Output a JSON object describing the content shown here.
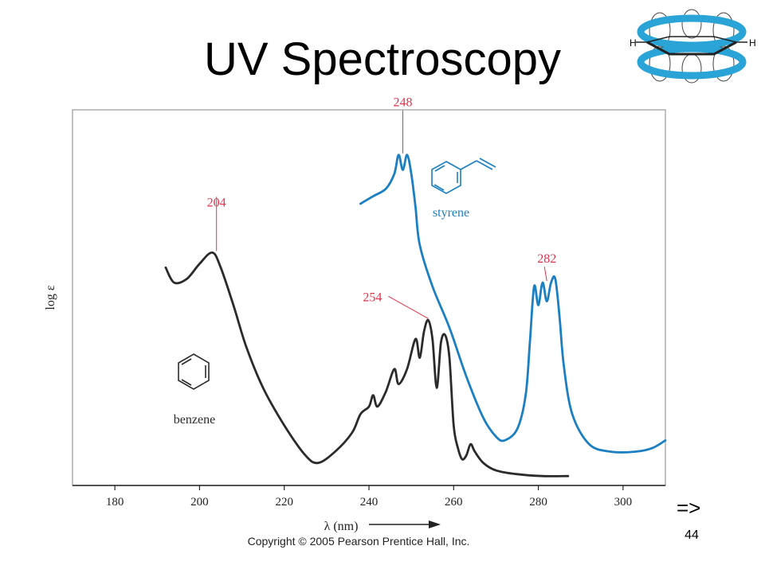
{
  "slide": {
    "title": "UV Spectroscopy",
    "page_number": "44",
    "next_arrow": "=>",
    "copyright": "Copyright © 2005 Pearson Prentice Hall, Inc."
  },
  "logo": {
    "h_left": "H",
    "h_right": "H",
    "icon": "benzene-pi-orbital-icon",
    "ring_color": "#2aa3d6"
  },
  "chart_data": {
    "type": "line",
    "xlabel": "λ (nm)",
    "ylabel": "log ε",
    "xlim": [
      170,
      310
    ],
    "ylim": [
      0,
      100
    ],
    "xticks": [
      180,
      200,
      220,
      240,
      260,
      280,
      300
    ],
    "grid": false,
    "series": [
      {
        "name": "benzene",
        "color": "#2b2b2b",
        "x": [
          192,
          194,
          197,
          200,
          203,
          205,
          208,
          211,
          215,
          220,
          225,
          228,
          232,
          236,
          238,
          240,
          241,
          242,
          244,
          246,
          247,
          249,
          251,
          252,
          253,
          254,
          255,
          256,
          257,
          258,
          259,
          260,
          261,
          262,
          263,
          264,
          265,
          267,
          270,
          275,
          281,
          287
        ],
        "y": [
          58,
          54,
          55,
          59,
          62,
          58,
          48,
          37,
          26,
          16,
          8,
          6,
          9,
          14,
          19,
          21,
          24,
          21,
          25,
          31,
          27,
          31,
          39,
          34,
          41,
          44,
          39,
          26,
          38,
          40,
          34,
          16,
          10,
          7,
          8,
          11,
          9,
          6,
          4,
          3,
          2.5,
          2.5
        ]
      },
      {
        "name": "styrene",
        "color": "#1b7fc1",
        "x": [
          238,
          241,
          244,
          246,
          247,
          248,
          249,
          250,
          251,
          252,
          255,
          259,
          263,
          267,
          270,
          272,
          275,
          277,
          278,
          279,
          280,
          281,
          282,
          283,
          284,
          285,
          286,
          288,
          292,
          297,
          303,
          307,
          310
        ],
        "y": [
          75,
          77,
          79,
          83,
          88,
          84,
          88,
          83,
          74,
          64,
          53,
          42,
          29,
          18,
          13,
          12,
          15,
          24,
          38,
          53,
          48,
          54,
          49,
          54,
          55,
          45,
          32,
          19,
          11,
          9,
          9,
          10,
          12
        ]
      }
    ],
    "annotations": [
      {
        "label": "204",
        "x": 204,
        "y": 62,
        "color": "#e2334c"
      },
      {
        "label": "248",
        "x": 248,
        "y": 88,
        "color": "#e2334c"
      },
      {
        "label": "254",
        "x": 254,
        "y": 44,
        "color": "#e2334c"
      },
      {
        "label": "282",
        "x": 282,
        "y": 54,
        "color": "#e2334c"
      }
    ],
    "compound_labels": [
      "styrene",
      "benzene"
    ]
  }
}
